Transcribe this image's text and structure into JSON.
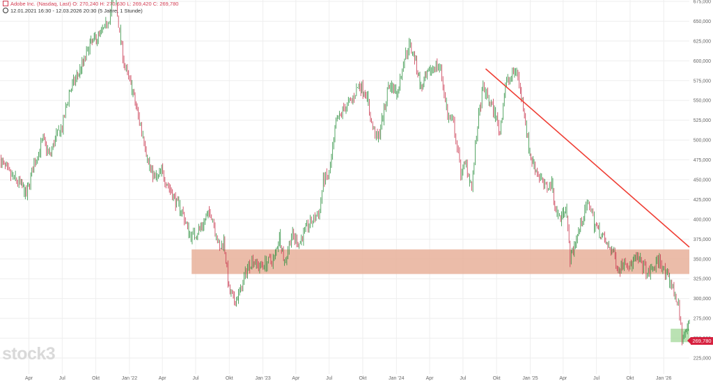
{
  "header": {
    "instrument_line": "Adobe Inc. (Nasdaq, Last)  O: 270,240  H: 270,630  L: 269,420  C: 269,780",
    "period_line": "12.01.2021 16:30 - 12.03.2026 20:30    (5 Jahre, 1 Stunde)"
  },
  "icons": {
    "instrument": "chart-badge-icon",
    "period": "clock-icon"
  },
  "logo": {
    "text": "stock3"
  },
  "last_price_label": "269,780",
  "colors": {
    "candles": "#c8344c",
    "zone_resistance": "#e8b09a",
    "zone_support": "#a9dba0",
    "trendline": "#ef3e34",
    "price_tag": "#d6203e"
  },
  "chart_data": {
    "type": "line",
    "title": "",
    "xlabel": "",
    "ylabel": "",
    "ylim": [
      225,
      675
    ],
    "y_ticks": [
      225,
      250,
      275,
      300,
      325,
      350,
      375,
      400,
      425,
      450,
      475,
      500,
      525,
      550,
      575,
      600,
      625,
      650,
      675
    ],
    "y_tick_labels": [
      "225,000",
      "250,000",
      "275,000",
      "300,000",
      "325,000",
      "350,000",
      "375,000",
      "400,000",
      "425,000",
      "450,000",
      "475,000",
      "500,000",
      "525,000",
      "550,000",
      "575,000",
      "600,000",
      "625,000",
      "650,000",
      "675,000"
    ],
    "x_range": [
      "2021-01-12",
      "2026-03-12"
    ],
    "x_ticks": [
      {
        "label": "Apr",
        "date": "2021-04-01"
      },
      {
        "label": "Jul",
        "date": "2021-07-01"
      },
      {
        "label": "Okt",
        "date": "2021-10-01"
      },
      {
        "label": "Jan '22",
        "date": "2022-01-01"
      },
      {
        "label": "Apr",
        "date": "2022-04-01"
      },
      {
        "label": "Jul",
        "date": "2022-07-01"
      },
      {
        "label": "Okt",
        "date": "2022-10-01"
      },
      {
        "label": "Jan '23",
        "date": "2023-01-01"
      },
      {
        "label": "Apr",
        "date": "2023-04-01"
      },
      {
        "label": "Jul",
        "date": "2023-07-01"
      },
      {
        "label": "Okt",
        "date": "2023-10-01"
      },
      {
        "label": "Jan '24",
        "date": "2024-01-01"
      },
      {
        "label": "Apr",
        "date": "2024-04-01"
      },
      {
        "label": "Jul",
        "date": "2024-07-01"
      },
      {
        "label": "Okt",
        "date": "2024-10-01"
      },
      {
        "label": "Jan '25",
        "date": "2025-01-01"
      },
      {
        "label": "Apr",
        "date": "2025-04-01"
      },
      {
        "label": "Jul",
        "date": "2025-07-01"
      },
      {
        "label": "Okt",
        "date": "2025-10-01"
      },
      {
        "label": "Jan '26",
        "date": "2026-01-01"
      }
    ],
    "grid": true,
    "series": [
      {
        "x": [
          "2021-01-12",
          "2021-02-01",
          "2021-02-20",
          "2021-03-08",
          "2021-03-25",
          "2021-04-15",
          "2021-05-10",
          "2021-05-28",
          "2021-06-15",
          "2021-07-01",
          "2021-07-20",
          "2021-08-10",
          "2021-08-30",
          "2021-09-15",
          "2021-10-05",
          "2021-10-25",
          "2021-11-10",
          "2021-11-20",
          "2021-12-05",
          "2021-12-20",
          "2022-01-05",
          "2022-01-25",
          "2022-02-10",
          "2022-02-25",
          "2022-03-15",
          "2022-03-30",
          "2022-04-20",
          "2022-05-10",
          "2022-05-25",
          "2022-06-15",
          "2022-06-28",
          "2022-07-15",
          "2022-08-10",
          "2022-08-20",
          "2022-09-05",
          "2022-09-16",
          "2022-09-30",
          "2022-10-15",
          "2022-11-01",
          "2022-11-20",
          "2022-12-05",
          "2022-12-20",
          "2023-01-10",
          "2023-02-01",
          "2023-02-15",
          "2023-03-01",
          "2023-03-20",
          "2023-04-10",
          "2023-05-01",
          "2023-05-20",
          "2023-06-05",
          "2023-06-15",
          "2023-07-01",
          "2023-07-20",
          "2023-08-10",
          "2023-09-01",
          "2023-09-20",
          "2023-10-10",
          "2023-10-25",
          "2023-11-10",
          "2023-11-28",
          "2023-12-10",
          "2024-01-05",
          "2024-01-20",
          "2024-02-05",
          "2024-02-20",
          "2024-03-08",
          "2024-03-25",
          "2024-04-15",
          "2024-05-01",
          "2024-05-20",
          "2024-06-05",
          "2024-06-15",
          "2024-06-25",
          "2024-07-10",
          "2024-07-25",
          "2024-08-10",
          "2024-08-25",
          "2024-09-10",
          "2024-09-25",
          "2024-10-10",
          "2024-10-25",
          "2024-11-10",
          "2024-11-25",
          "2024-12-05",
          "2024-12-13",
          "2024-12-31",
          "2025-01-20",
          "2025-02-10",
          "2025-03-01",
          "2025-03-12",
          "2025-03-25",
          "2025-04-08",
          "2025-04-20",
          "2025-05-10",
          "2025-05-30",
          "2025-06-12",
          "2025-06-25",
          "2025-07-15",
          "2025-08-01",
          "2025-08-15",
          "2025-09-01",
          "2025-09-15",
          "2025-10-01",
          "2025-10-15",
          "2025-11-01",
          "2025-11-20",
          "2025-12-05",
          "2025-12-20",
          "2026-01-05",
          "2026-01-20",
          "2026-02-01",
          "2026-02-10",
          "2026-02-20",
          "2026-03-01",
          "2026-03-12"
        ],
        "y": [
          476,
          460,
          450,
          445,
          430,
          470,
          500,
          480,
          505,
          515,
          560,
          580,
          600,
          620,
          630,
          640,
          660,
          695,
          635,
          590,
          570,
          530,
          500,
          465,
          450,
          460,
          440,
          420,
          410,
          380,
          380,
          390,
          410,
          395,
          360,
          375,
          310,
          295,
          310,
          340,
          350,
          340,
          345,
          350,
          380,
          345,
          380,
          370,
          390,
          400,
          410,
          450,
          455,
          520,
          540,
          550,
          570,
          560,
          520,
          500,
          535,
          570,
          560,
          600,
          620,
          605,
          565,
          580,
          595,
          590,
          530,
          520,
          490,
          460,
          470,
          440,
          520,
          565,
          550,
          535,
          510,
          570,
          580,
          590,
          560,
          545,
          480,
          460,
          440,
          445,
          410,
          400,
          420,
          350,
          380,
          410,
          420,
          395,
          380,
          365,
          360,
          335,
          350,
          340,
          350,
          345,
          330,
          340,
          350,
          330,
          320,
          305,
          290,
          250,
          255,
          270
        ]
      }
    ],
    "annotations": [
      {
        "type": "zone",
        "y_from": 331,
        "y_to": 362,
        "x_from": "2022-06-20",
        "x_to": "2026-03-12",
        "label": "resistance zone"
      },
      {
        "type": "zone",
        "y_from": 245,
        "y_to": 262,
        "x_from": "2026-01-20",
        "x_to": "2026-03-12",
        "label": "support zone"
      },
      {
        "type": "trendline",
        "points": [
          [
            "2024-09-01",
            590
          ],
          [
            "2026-03-12",
            365
          ]
        ]
      }
    ],
    "last_price": 269.78
  }
}
